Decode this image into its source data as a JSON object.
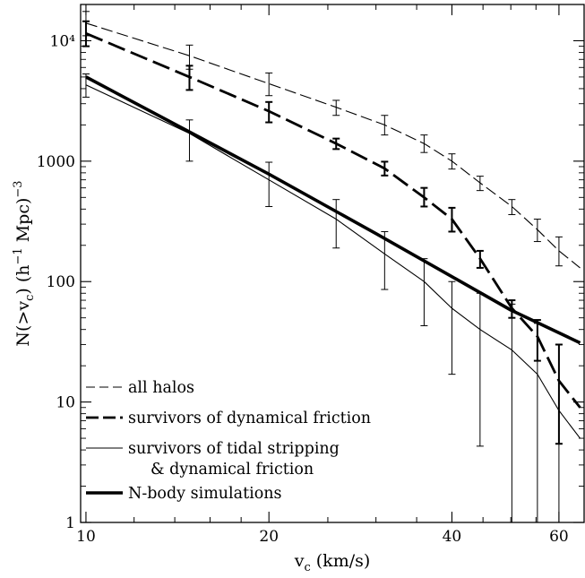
{
  "chart_data": {
    "type": "line",
    "xscale": "log",
    "yscale": "log",
    "xlim": [
      9.8,
      66
    ],
    "ylim": [
      1,
      20000
    ],
    "xticks": [
      {
        "value": 10,
        "label": "10"
      },
      {
        "value": 20,
        "label": "20"
      },
      {
        "value": 40,
        "label": "40"
      },
      {
        "value": 60,
        "label": "60"
      }
    ],
    "xminor": [
      12,
      14,
      16,
      18,
      25,
      30,
      35,
      45,
      50,
      55
    ],
    "yticks": [
      {
        "value": 1,
        "label": "1"
      },
      {
        "value": 10,
        "label": "10"
      },
      {
        "value": 100,
        "label": "100"
      },
      {
        "value": 1000,
        "label": "1000"
      },
      {
        "value": 10000,
        "label": "10⁴"
      }
    ],
    "xlabel": {
      "main": "v",
      "sub": "c",
      "rest": " (km/s)"
    },
    "ylabel": {
      "pre": "N(>v",
      "sub": "c",
      "mid": ")  (h",
      "sup": "−1",
      "post": " Mpc)",
      "sup2": "−3"
    },
    "legend_position": "bottom-left",
    "series": [
      {
        "name": "all halos",
        "style": "thin-dashed",
        "x": [
          10,
          14.8,
          20,
          25.8,
          31,
          36,
          40,
          44.5,
          50.2,
          55.3,
          60,
          65
        ],
        "y": [
          14000,
          7500,
          4400,
          2800,
          2000,
          1400,
          1000,
          660,
          420,
          270,
          180,
          130
        ],
        "err_lo": [
          11000,
          5800,
          3500,
          2400,
          1650,
          1180,
          860,
          570,
          360,
          215,
          135,
          null
        ],
        "err_hi": [
          17500,
          9200,
          5400,
          3200,
          2400,
          1650,
          1150,
          750,
          480,
          330,
          235,
          null
        ]
      },
      {
        "name": "survivors of dynamical friction",
        "style": "thick-dashed",
        "x": [
          10,
          14.8,
          20,
          25.8,
          31,
          36,
          40,
          44.5,
          50.2,
          55.3,
          60,
          65
        ],
        "y": [
          11500,
          5000,
          2600,
          1400,
          870,
          500,
          330,
          155,
          60,
          35,
          15,
          9
        ],
        "err_lo": [
          9000,
          3900,
          2100,
          1260,
          760,
          420,
          260,
          130,
          50,
          22,
          4.5,
          null
        ],
        "err_hi": [
          14500,
          6200,
          3100,
          1540,
          990,
          600,
          410,
          180,
          70,
          48,
          30,
          null
        ]
      },
      {
        "name": "survivors of tidal stripping & dynamical friction",
        "style": "thin-solid",
        "x": [
          10,
          14.8,
          20,
          25.8,
          31,
          36,
          40,
          44.5,
          50.2,
          55.3,
          60,
          65
        ],
        "y": [
          4300,
          1700,
          700,
          330,
          170,
          100,
          60,
          40,
          27,
          17,
          8.5,
          5
        ],
        "err_lo": [
          3400,
          1000,
          420,
          190,
          86,
          43,
          17,
          4.3,
          1,
          1,
          1,
          null
        ],
        "err_hi": [
          5300,
          2200,
          980,
          480,
          260,
          155,
          100,
          80,
          65,
          45,
          30,
          null
        ]
      },
      {
        "name": "N-body simulations",
        "style": "thick-solid",
        "x": [
          10,
          20,
          30,
          40,
          50,
          65
        ],
        "y": [
          5000,
          780,
          250,
          110,
          58,
          31
        ]
      }
    ]
  }
}
